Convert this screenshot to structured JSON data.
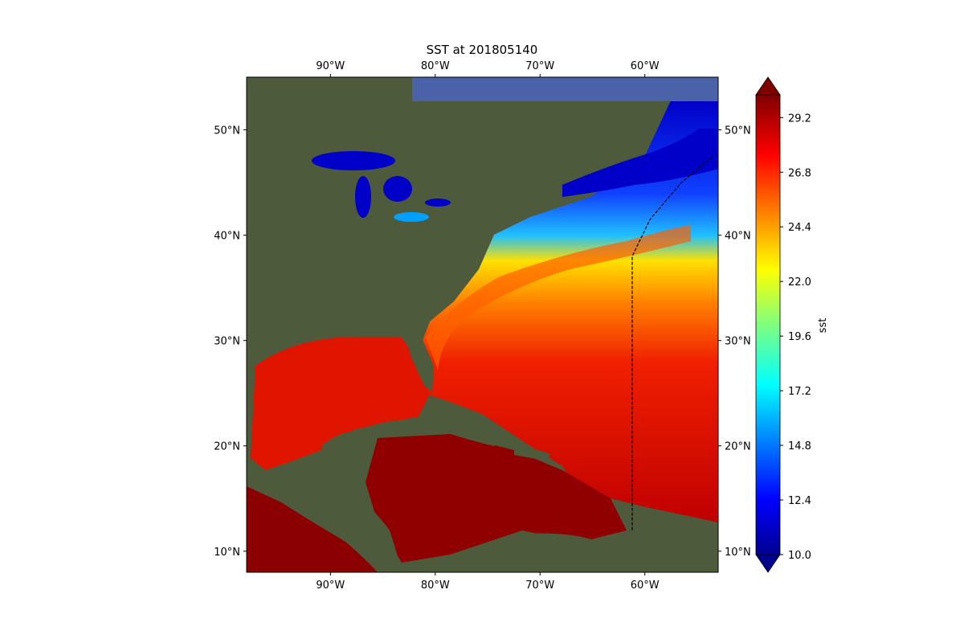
{
  "title": "SST at 201805140",
  "map": {
    "lon_range": [
      -98,
      -53
    ],
    "lat_range": [
      8,
      55
    ],
    "lon_ticks": [
      {
        "value": -90,
        "label": "90°W"
      },
      {
        "value": -80,
        "label": "80°W"
      },
      {
        "value": -70,
        "label": "70°W"
      },
      {
        "value": -60,
        "label": "60°W"
      }
    ],
    "lat_ticks": [
      {
        "value": 10,
        "label": "10°N"
      },
      {
        "value": 20,
        "label": "20°N"
      },
      {
        "value": 30,
        "label": "30°N"
      },
      {
        "value": 40,
        "label": "40°N"
      },
      {
        "value": 50,
        "label": "50°N"
      }
    ],
    "boundary_line": [
      [
        -61.2,
        12
      ],
      [
        -61.2,
        38
      ],
      [
        -59.5,
        41.5
      ],
      [
        -56.5,
        45
      ],
      [
        -53.5,
        47.5
      ]
    ]
  },
  "colorbar": {
    "label": "sst",
    "min": 10.0,
    "max": 30.2,
    "extend": "both",
    "colormap": "jet",
    "ticks": [
      {
        "value": 10.0,
        "label": "10.0"
      },
      {
        "value": 12.4,
        "label": "12.4"
      },
      {
        "value": 14.8,
        "label": "14.8"
      },
      {
        "value": 17.2,
        "label": "17.2"
      },
      {
        "value": 19.6,
        "label": "19.6"
      },
      {
        "value": 22.0,
        "label": "22.0"
      },
      {
        "value": 24.4,
        "label": "24.4"
      },
      {
        "value": 26.8,
        "label": "26.8"
      },
      {
        "value": 29.2,
        "label": "29.2"
      }
    ]
  },
  "colors": {
    "land": "#4e5a3c",
    "ocean_warm": "#d40000",
    "ocean_hot": "#8b0000",
    "cold_water": "#0000c8",
    "frame_blue": "#4a62a8"
  }
}
